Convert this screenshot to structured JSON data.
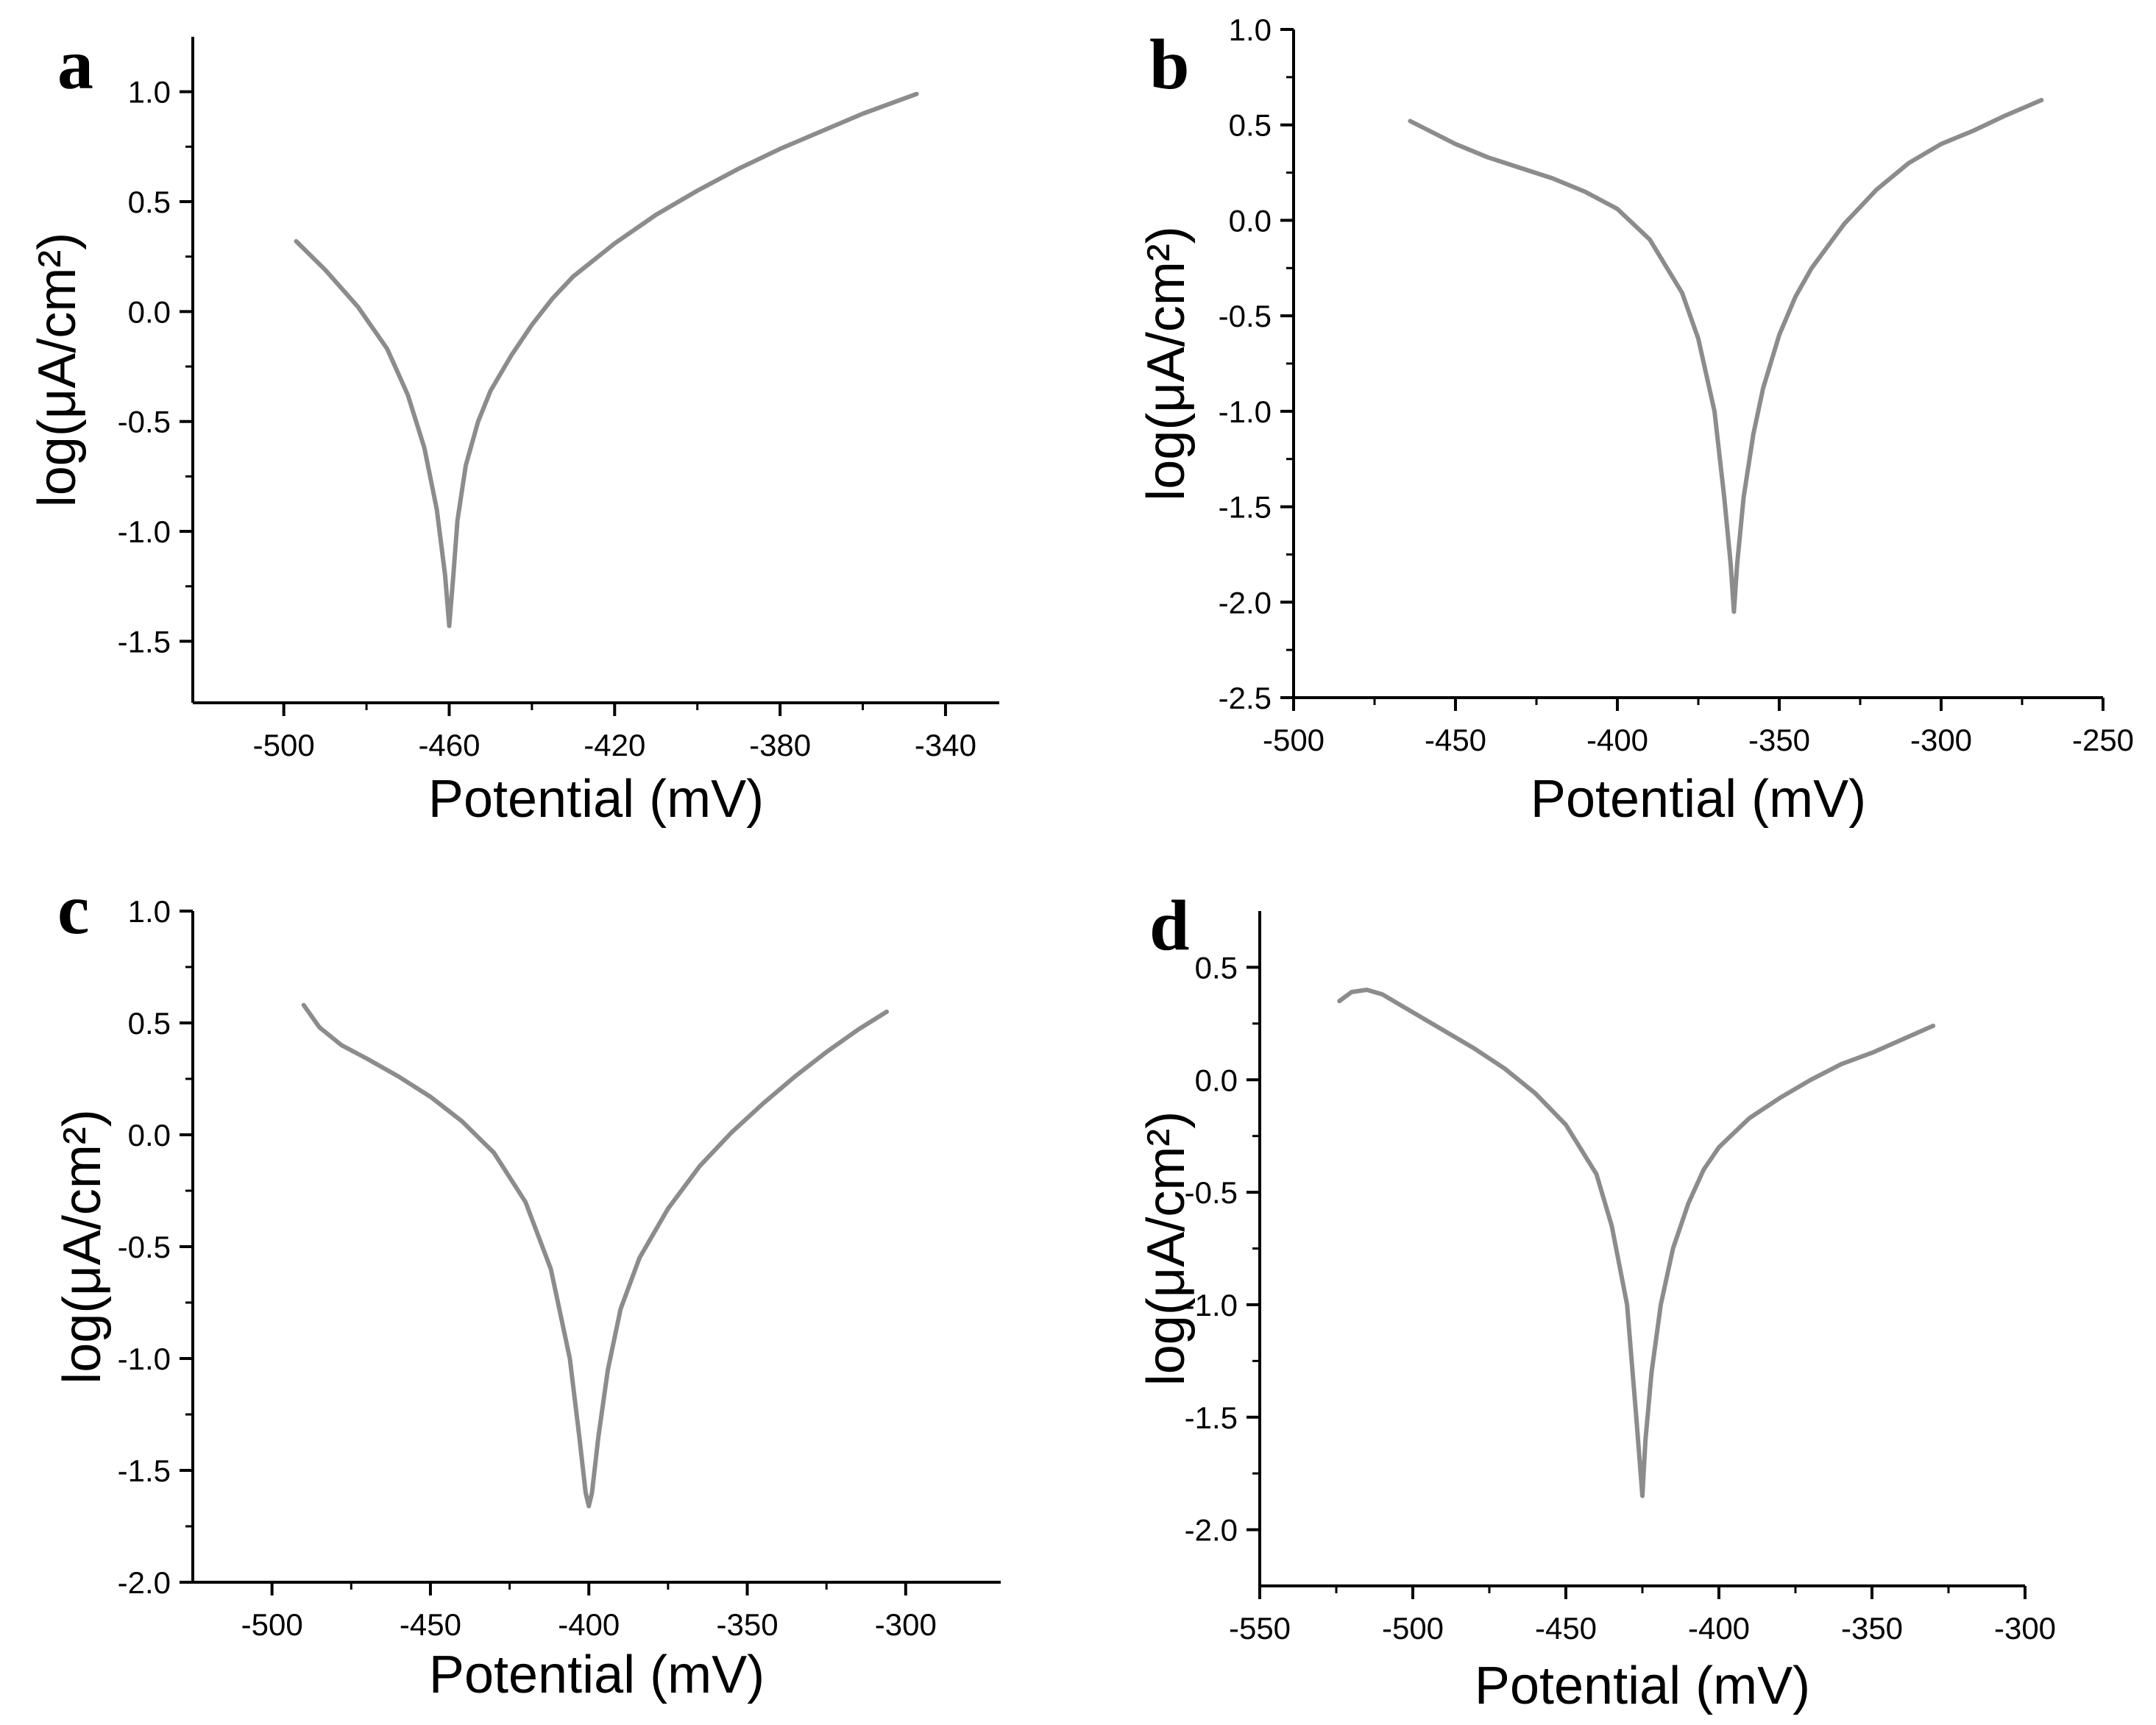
{
  "chart_data": [
    {
      "type": "line",
      "panel_label": "a",
      "xlabel": "Potential (mV)",
      "ylabel": "log(μA/cm²)",
      "xlim": [
        -522,
        -327
      ],
      "ylim": [
        -1.78,
        1.25
      ],
      "x_ticks": [
        -500,
        -460,
        -420,
        -380,
        -340
      ],
      "x_tick_labels": [
        "-500",
        "-460",
        "-420",
        "-380",
        "-340"
      ],
      "y_ticks": [
        -1.5,
        -1.0,
        -0.5,
        0.0,
        0.5,
        1.0
      ],
      "y_tick_labels": [
        "-1.5",
        "-1.0",
        "-0.5",
        "0.0",
        "0.5",
        "1.0"
      ],
      "series": [
        {
          "name": "a",
          "color": "#8c8c8c",
          "x": [
            -497,
            -490,
            -482,
            -475,
            -470,
            -466,
            -463,
            -461,
            -460,
            -459,
            -458,
            -456,
            -453,
            -450,
            -445,
            -440,
            -435,
            -430,
            -420,
            -410,
            -400,
            -390,
            -380,
            -370,
            -360,
            -347
          ],
          "y": [
            0.32,
            0.19,
            0.02,
            -0.17,
            -0.38,
            -0.62,
            -0.9,
            -1.2,
            -1.43,
            -1.2,
            -0.95,
            -0.7,
            -0.5,
            -0.36,
            -0.2,
            -0.06,
            0.06,
            0.16,
            0.31,
            0.44,
            0.55,
            0.65,
            0.74,
            0.82,
            0.9,
            0.99
          ]
        }
      ]
    },
    {
      "type": "line",
      "panel_label": "b",
      "xlabel": "Potential (mV)",
      "ylabel": "log(μA/cm²)",
      "xlim": [
        -500,
        -250
      ],
      "ylim": [
        -2.5,
        1.0
      ],
      "x_ticks": [
        -500,
        -450,
        -400,
        -350,
        -300,
        -250
      ],
      "x_tick_labels": [
        "-500",
        "-450",
        "-400",
        "-350",
        "-300",
        "-250"
      ],
      "y_ticks": [
        -2.5,
        -2.0,
        -1.5,
        -1.0,
        -0.5,
        0.0,
        0.5,
        1.0
      ],
      "y_tick_labels": [
        "-2.5",
        "-2.0",
        "-1.5",
        "-1.0",
        "-0.5",
        "0.0",
        "0.5",
        "1.0"
      ],
      "series": [
        {
          "name": "b",
          "color": "#8c8c8c",
          "x": [
            -464,
            -450,
            -440,
            -420,
            -410,
            -400,
            -390,
            -380,
            -375,
            -370,
            -367,
            -365,
            -364,
            -363,
            -361,
            -358,
            -355,
            -350,
            -345,
            -340,
            -330,
            -320,
            -310,
            -300,
            -290,
            -280,
            -269
          ],
          "y": [
            0.52,
            0.4,
            0.33,
            0.22,
            0.15,
            0.06,
            -0.1,
            -0.38,
            -0.62,
            -1.0,
            -1.45,
            -1.8,
            -2.05,
            -1.8,
            -1.45,
            -1.12,
            -0.88,
            -0.6,
            -0.4,
            -0.25,
            -0.02,
            0.16,
            0.3,
            0.4,
            0.47,
            0.55,
            0.63
          ]
        }
      ]
    },
    {
      "type": "line",
      "panel_label": "c",
      "xlabel": "Potential (mV)",
      "ylabel": "log(μA/cm²)",
      "xlim": [
        -525,
        -270
      ],
      "ylim": [
        -2.0,
        1.0
      ],
      "x_ticks": [
        -500,
        -450,
        -400,
        -350,
        -300
      ],
      "x_tick_labels": [
        "-500",
        "-450",
        "-400",
        "-350",
        "-300"
      ],
      "y_ticks": [
        -2.0,
        -1.5,
        -1.0,
        -0.5,
        0.0,
        0.5,
        1.0
      ],
      "y_tick_labels": [
        "-2.0",
        "-1.5",
        "-1.0",
        "-0.5",
        "0.0",
        "0.5",
        "1.0"
      ],
      "series": [
        {
          "name": "c",
          "color": "#8c8c8c",
          "x": [
            -490,
            -485,
            -478,
            -470,
            -460,
            -450,
            -440,
            -430,
            -420,
            -412,
            -406,
            -403,
            -401,
            -400,
            -399,
            -397,
            -394,
            -390,
            -384,
            -375,
            -365,
            -355,
            -345,
            -335,
            -325,
            -315,
            -306
          ],
          "y": [
            0.58,
            0.48,
            0.4,
            0.34,
            0.26,
            0.17,
            0.06,
            -0.08,
            -0.3,
            -0.6,
            -1.0,
            -1.35,
            -1.6,
            -1.66,
            -1.6,
            -1.35,
            -1.05,
            -0.78,
            -0.55,
            -0.33,
            -0.14,
            0.01,
            0.14,
            0.26,
            0.37,
            0.47,
            0.55
          ]
        }
      ]
    },
    {
      "type": "line",
      "panel_label": "d",
      "xlabel": "Potential (mV)",
      "ylabel": "log(μA/cm²)",
      "xlim": [
        -550,
        -300
      ],
      "ylim": [
        -2.25,
        0.75
      ],
      "x_ticks": [
        -550,
        -500,
        -450,
        -400,
        -350,
        -300
      ],
      "x_tick_labels": [
        "-550",
        "-500",
        "-450",
        "-400",
        "-350",
        "-300"
      ],
      "y_ticks": [
        -2.0,
        -1.5,
        -1.0,
        -0.5,
        0.0,
        0.5
      ],
      "y_tick_labels": [
        "-2.0",
        "-1.5",
        "-1.0",
        "-0.5",
        "0.0",
        "0.5"
      ],
      "series": [
        {
          "name": "d",
          "color": "#8c8c8c",
          "x": [
            -524,
            -520,
            -515,
            -510,
            -500,
            -490,
            -480,
            -470,
            -460,
            -450,
            -440,
            -435,
            -430,
            -427,
            -425,
            -424,
            -422,
            -419,
            -415,
            -410,
            -405,
            -400,
            -390,
            -380,
            -370,
            -360,
            -350,
            -340,
            -330
          ],
          "y": [
            0.35,
            0.39,
            0.4,
            0.38,
            0.3,
            0.22,
            0.14,
            0.05,
            -0.06,
            -0.2,
            -0.42,
            -0.65,
            -1.0,
            -1.5,
            -1.85,
            -1.6,
            -1.3,
            -1.0,
            -0.75,
            -0.55,
            -0.4,
            -0.3,
            -0.17,
            -0.08,
            0.0,
            0.07,
            0.12,
            0.18,
            0.24
          ]
        }
      ]
    }
  ]
}
